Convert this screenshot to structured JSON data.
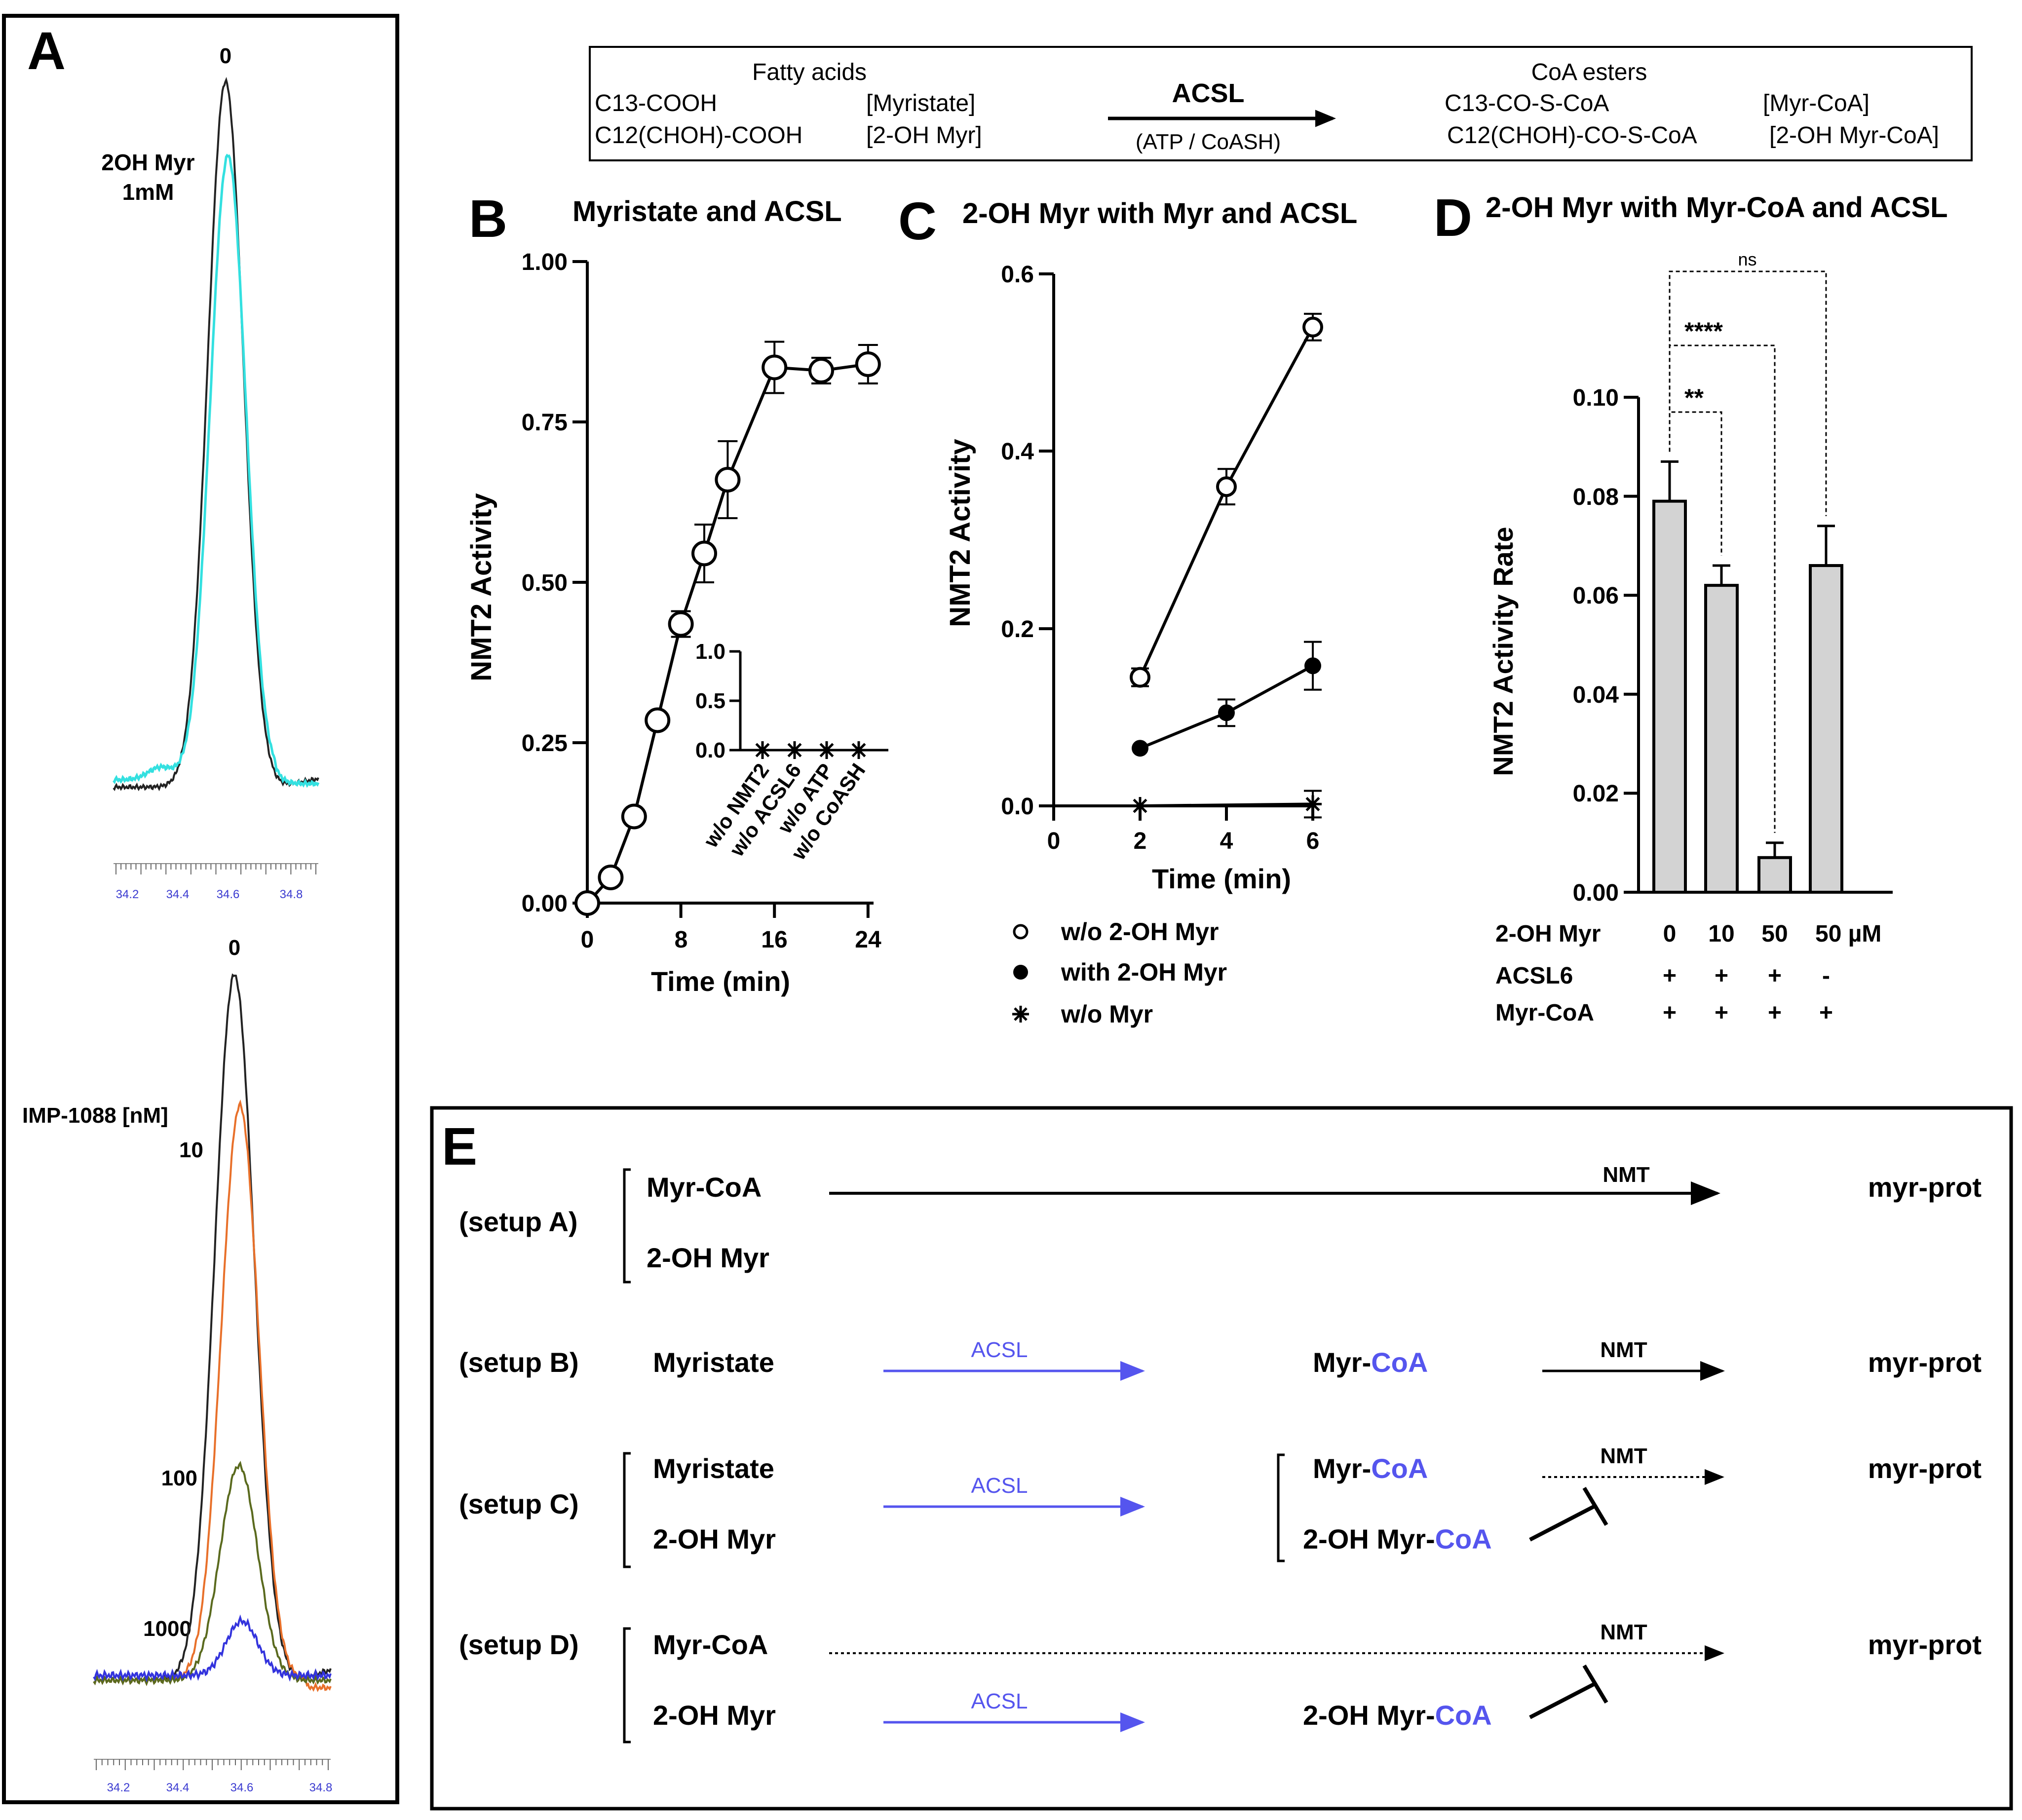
{
  "colors": {
    "black": "#000000",
    "cyan": "#33e0e0",
    "orange": "#e8702a",
    "olive": "#5a6a1e",
    "blue": "#3333dd",
    "pathway_blue": "#5555ee",
    "bar_gray": "#d3d3d3",
    "tick_blue": "#3a3ad0"
  },
  "panel_a": {
    "letter": "A",
    "top": {
      "peak_label": "0",
      "label_line1": "2OH Myr",
      "label_line2": "1mM",
      "x_ticks": [
        "34.2",
        "34.4",
        "34.6",
        "34.8"
      ]
    },
    "bottom": {
      "peak_label": "0",
      "title": "IMP-1088 [nM]",
      "labels": [
        "10",
        "100",
        "1000"
      ],
      "x_ticks": [
        "34.2",
        "34.4",
        "34.6",
        "34.8"
      ]
    }
  },
  "scheme": {
    "left_header": "Fatty acids",
    "left_row1": "C13-COOH",
    "left_row1_name": "[Myristate]",
    "left_row2": "C12(CHOH)-COOH",
    "left_row2_name": "[2-OH Myr]",
    "enzyme": "ACSL",
    "cofactors": "(ATP / CoASH)",
    "right_header": "CoA esters",
    "right_row1": "C13-CO-S-CoA",
    "right_row1_name": "[Myr-CoA]",
    "right_row2": "C12(CHOH)-CO-S-CoA",
    "right_row2_name": "[2-OH Myr-CoA]"
  },
  "chart_data": [
    {
      "panel": "B",
      "type": "line",
      "title": "Myristate and ACSL",
      "xlabel": "Time (min)",
      "ylabel": "NMT2 Activity",
      "xlim": [
        0,
        25
      ],
      "ylim": [
        0,
        1.0
      ],
      "x_ticks": [
        "0",
        "8",
        "16",
        "24"
      ],
      "y_ticks": [
        "0.00",
        "0.25",
        "0.50",
        "0.75",
        "1.00"
      ],
      "series": [
        {
          "name": "Myristate + ACSL",
          "marker": "open-circle",
          "x": [
            0,
            2,
            4,
            6,
            8,
            10,
            12,
            16,
            20,
            24
          ],
          "values": [
            0.0,
            0.04,
            0.135,
            0.285,
            0.435,
            0.545,
            0.66,
            0.835,
            0.83,
            0.84
          ],
          "errors": [
            0.005,
            0.005,
            0.01,
            0.01,
            0.02,
            0.045,
            0.06,
            0.04,
            0.02,
            0.03
          ]
        }
      ],
      "inset": {
        "y_ticks": [
          "0.0",
          "0.5",
          "1.0"
        ],
        "ylim": [
          0,
          1.0
        ],
        "categories": [
          "w/o NMT2",
          "w/o ACSL6",
          "w/o ATP",
          "w/o CoASH"
        ],
        "values": [
          0,
          0,
          0,
          0
        ]
      }
    },
    {
      "panel": "C",
      "type": "line",
      "title": "2-OH Myr with Myr and ACSL",
      "xlabel": "Time (min)",
      "ylabel": "NMT2 Activity",
      "xlim": [
        0,
        6
      ],
      "ylim": [
        0,
        0.6
      ],
      "x_ticks": [
        "0",
        "2",
        "4",
        "6"
      ],
      "y_ticks": [
        "0.0",
        "0.2",
        "0.4",
        "0.6"
      ],
      "series": [
        {
          "name": "w/o 2-OH Myr",
          "marker": "open-circle",
          "x": [
            2,
            4,
            6
          ],
          "values": [
            0.145,
            0.36,
            0.54
          ],
          "errors": [
            0.01,
            0.02,
            0.015
          ]
        },
        {
          "name": "with 2-OH Myr",
          "marker": "filled-circle",
          "x": [
            2,
            4,
            6
          ],
          "values": [
            0.065,
            0.105,
            0.158
          ],
          "errors": [
            0.005,
            0.015,
            0.027
          ]
        },
        {
          "name": "w/o Myr",
          "marker": "asterisk",
          "x": [
            2,
            6
          ],
          "values": [
            0.0,
            0.002
          ],
          "errors": [
            0,
            0.015
          ]
        }
      ]
    },
    {
      "panel": "D",
      "type": "bar",
      "title": "2-OH Myr with Myr-CoA and ACSL",
      "ylabel": "NMT2 Activity Rate",
      "ylim": [
        0,
        0.1
      ],
      "y_ticks": [
        "0.00",
        "0.02",
        "0.04",
        "0.06",
        "0.08",
        "0.10"
      ],
      "categories": [
        "0",
        "10",
        "50",
        "50 µM"
      ],
      "values": [
        0.079,
        0.062,
        0.007,
        0.066
      ],
      "errors": [
        0.008,
        0.004,
        0.003,
        0.008
      ],
      "rows": [
        {
          "label": "2-OH Myr",
          "cells": [
            "0",
            "10",
            "50",
            "50 µM"
          ]
        },
        {
          "label": "ACSL6",
          "cells": [
            "+",
            "+",
            "+",
            "-"
          ]
        },
        {
          "label": "Myr-CoA",
          "cells": [
            "+",
            "+",
            "+",
            "+"
          ]
        }
      ],
      "significance": [
        {
          "from": 0,
          "to": 1,
          "label": "**"
        },
        {
          "from": 0,
          "to": 2,
          "label": "****"
        },
        {
          "from": 0,
          "to": 3,
          "label": "ns"
        }
      ]
    }
  ],
  "panel_e": {
    "letter": "E",
    "setups": [
      {
        "label": "(setup A)",
        "inputs": [
          "Myr-CoA",
          "2-OH Myr"
        ],
        "nmt": "NMT",
        "product": "myr-prot"
      },
      {
        "label": "(setup B)",
        "input": "Myristate",
        "acsl": "ACSL",
        "intermediate_prefix": "Myr-",
        "intermediate_suffix": "CoA",
        "nmt": "NMT",
        "product": "myr-prot"
      },
      {
        "label": "(setup C)",
        "inputs": [
          "Myristate",
          "2-OH Myr"
        ],
        "acsl": "ACSL",
        "int1_prefix": "Myr-",
        "int1_suffix": "CoA",
        "int2_prefix": "2-OH Myr-",
        "int2_suffix": "CoA",
        "nmt": "NMT",
        "product": "myr-prot"
      },
      {
        "label": "(setup D)",
        "inputs": [
          "Myr-CoA",
          "2-OH Myr"
        ],
        "acsl": "ACSL",
        "int_prefix": "2-OH Myr-",
        "int_suffix": "CoA",
        "nmt": "NMT",
        "product": "myr-prot"
      }
    ]
  }
}
